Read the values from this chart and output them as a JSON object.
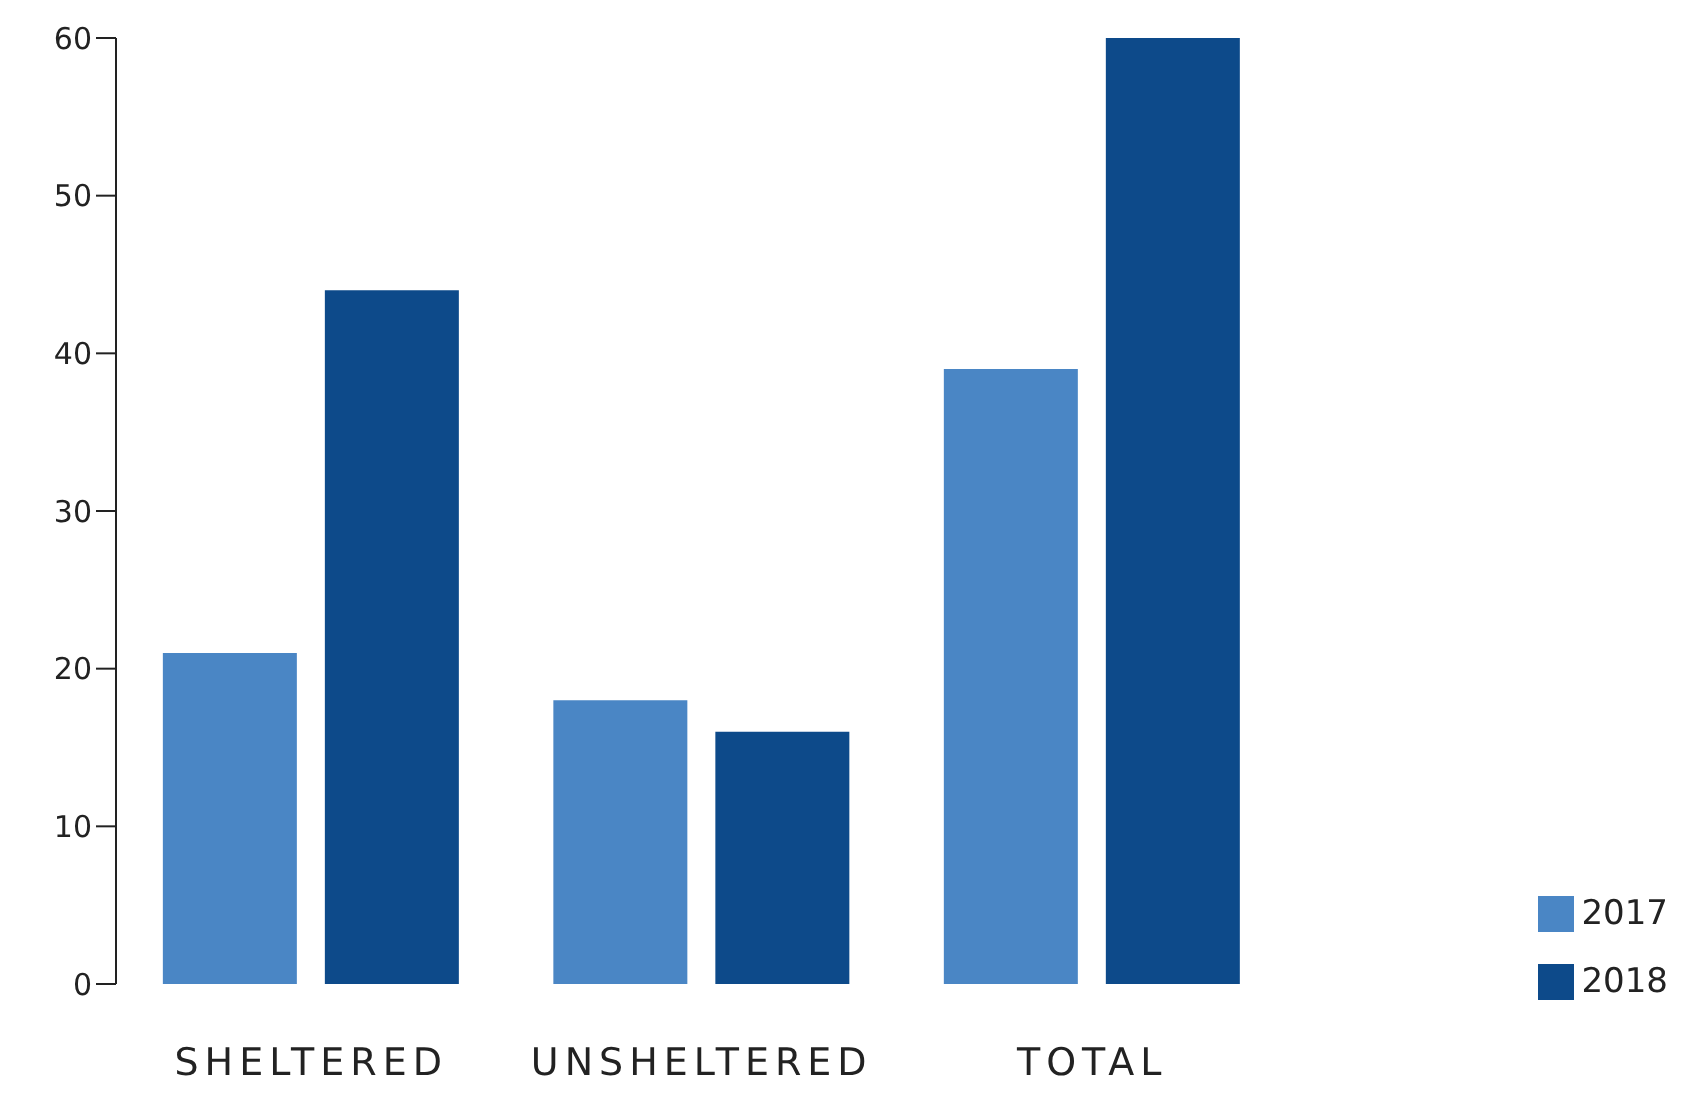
{
  "chart_data": {
    "type": "bar",
    "categories": [
      "SHELTERED",
      "UNSHELTERED",
      "TOTAL"
    ],
    "series": [
      {
        "name": "2017",
        "color": "#4a86c5",
        "values": [
          21,
          18,
          39
        ]
      },
      {
        "name": "2018",
        "color": "#0d4a8a",
        "values": [
          44,
          16,
          60
        ]
      }
    ],
    "ylim": [
      0,
      60
    ],
    "yticks": [
      0,
      10,
      20,
      30,
      40,
      50,
      60
    ],
    "grid": false,
    "legend": "bottom right"
  }
}
